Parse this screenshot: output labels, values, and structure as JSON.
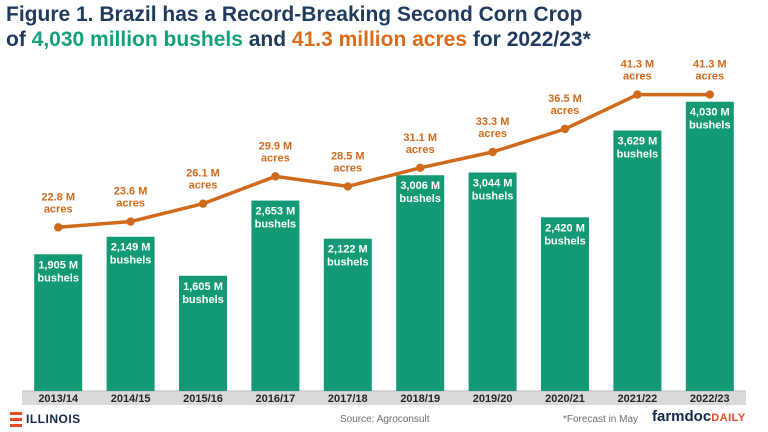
{
  "title": {
    "line1": "Figure 1. Brazil has a Record-Breaking Second Corn Crop",
    "line2_prefix": "of ",
    "line2_bushels": "4,030 million bushels",
    "line2_mid": " and ",
    "line2_acres": "41.3 million acres",
    "line2_suffix": " for 2022/23*"
  },
  "chart_data": {
    "type": "bar",
    "categories": [
      "2013/14",
      "2014/15",
      "2015/16",
      "2016/17",
      "2017/18",
      "2018/19",
      "2019/20",
      "2020/21",
      "2021/22",
      "2022/23"
    ],
    "series": [
      {
        "type": "bar",
        "values": [
          1905,
          2149,
          1605,
          2653,
          2122,
          3006,
          3044,
          2420,
          3629,
          4030
        ],
        "labels": [
          "1,905 M",
          "2,149 M",
          "1,605 M",
          "2,653 M",
          "2,122 M",
          "3,006 M",
          "3,044 M",
          "2,420 M",
          "3,629 M",
          "4,030 M"
        ],
        "unit_label": "bushels",
        "color": "#139a74"
      },
      {
        "type": "line",
        "values": [
          22.8,
          23.6,
          26.1,
          29.9,
          28.5,
          31.1,
          33.3,
          36.5,
          41.3,
          41.3
        ],
        "labels": [
          "22.8 M",
          "23.6 M",
          "26.1 M",
          "29.9 M",
          "28.5 M",
          "31.1 M",
          "33.3 M",
          "36.5 M",
          "41.3 M",
          "41.3 M"
        ],
        "unit_label": "acres",
        "color": "#cf6a1c"
      }
    ],
    "bar_ylim": [
      0,
      4500
    ],
    "line_ylim": [
      0,
      45
    ],
    "grid": false,
    "legend": "none",
    "category_band_color": "#d9d9d9"
  },
  "footer": {
    "illinois_logo": "ILLINOIS",
    "source": "Source: Agroconsult",
    "forecast_note": "*Forecast in May",
    "farmdoc_logo": "farmdoc",
    "farmdoc_logo_suffix": "DAILY"
  },
  "colors": {
    "title": "#1f3a5c",
    "bushels_highlight": "#13a07c",
    "acres_highlight": "#d96b1a"
  }
}
